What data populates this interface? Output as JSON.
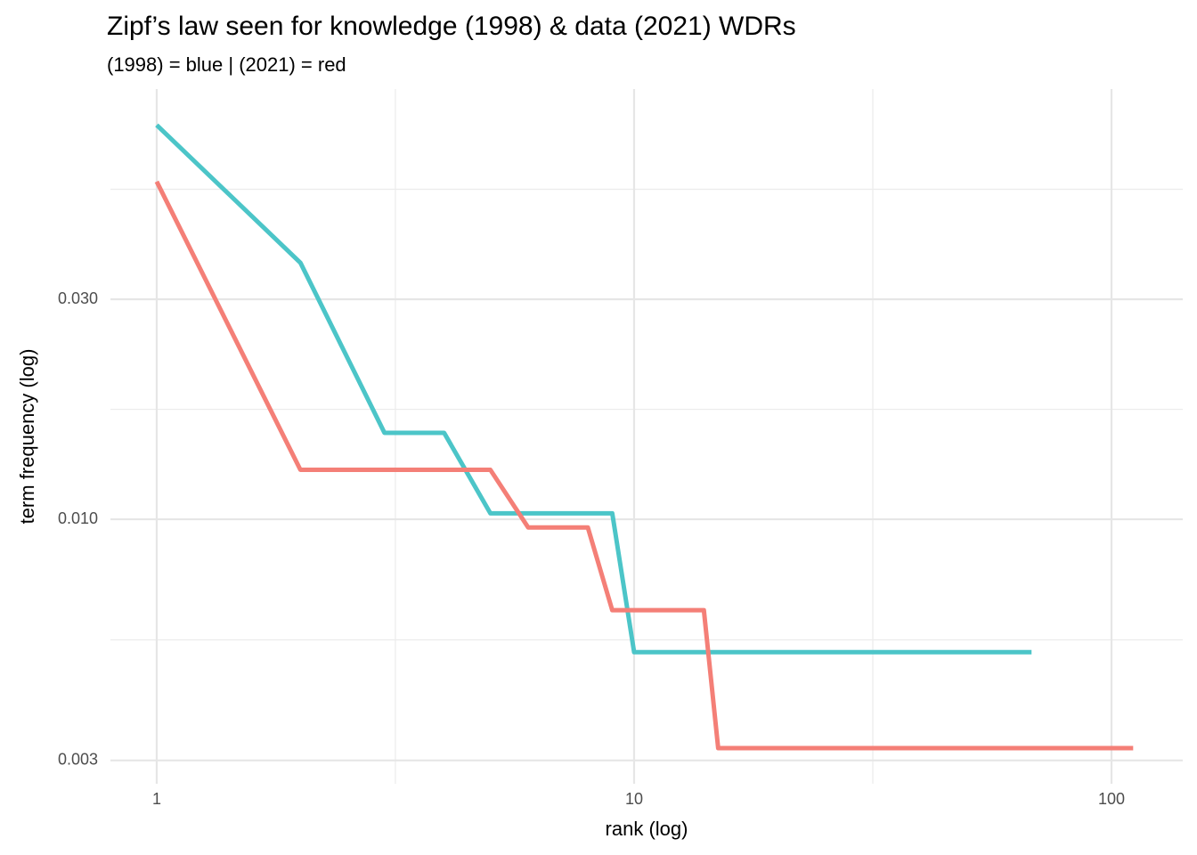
{
  "chart_data": {
    "type": "line",
    "title": "Zipf’s law seen for  knowledge (1998) & data (2021) WDRs",
    "subtitle": "(1998) = blue | (2021) = red",
    "x_label": "rank (log)",
    "y_label": "term frequency (log)",
    "x_log": true,
    "y_log": true,
    "grid": true,
    "xlim": [
      0.8,
      141
    ],
    "ylim": [
      0.00267,
      0.0857
    ],
    "xticks": [
      1,
      10,
      100
    ],
    "yticks": [
      0.003,
      {
        "value": 0.01,
        "label": "0.010"
      },
      {
        "value": 0.03,
        "label": "0.030"
      }
    ],
    "series": [
      {
        "name": "1998",
        "color": "#4cc5c8",
        "x": [
          1,
          2,
          3,
          4,
          5,
          9,
          10,
          68
        ],
        "values": [
          0.0716,
          0.036,
          0.0154,
          0.0154,
          0.0103,
          0.0103,
          0.00515,
          0.00515
        ]
      },
      {
        "name": "2021",
        "color": "#f47f77",
        "x": [
          1,
          2,
          5,
          6,
          8,
          9,
          14,
          15,
          111
        ],
        "values": [
          0.054,
          0.0128,
          0.0128,
          0.0096,
          0.0096,
          0.00635,
          0.00635,
          0.00319,
          0.00319
        ]
      }
    ]
  }
}
